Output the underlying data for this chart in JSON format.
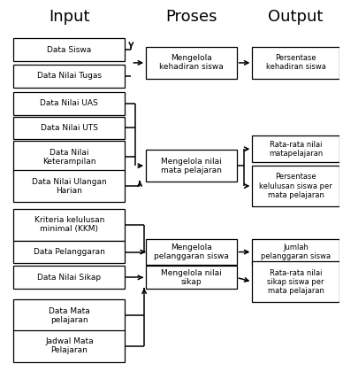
{
  "title_input": "Input",
  "title_proses": "Proses",
  "title_output": "Output",
  "bg_color": "#ffffff",
  "box_color": "#ffffff",
  "box_edge": "#000000",
  "input_labels": [
    "Data Siswa",
    "Data Nilai Tugas",
    "Data Nilai UAS",
    "Data Nilai UTS",
    "Data Nilai\nKeterampilan",
    "Data Nilai Ulangan\nHarian",
    "Kriteria kelulusan\nminimal (KKM)",
    "Data Pelanggaran",
    "Data Nilai Sikap",
    "Data Mata\npelajaran",
    "Jadwal Mata\nPelajaran"
  ],
  "proses_labels": [
    "Mengelola\nkehadiran siswa",
    "Mengelola nilai\nmata pelajaran",
    "Mengelola\npelanggaran siswa",
    "Mengelola nilai\nsikap"
  ],
  "output_labels": [
    "Persentase\nkehadiran siswa",
    "Rata-rata nilai\nmatapelajaran",
    "Persentase\nkelulusan siswa per\nmata pelajaran",
    "Jumlah\npelanggaran siswa",
    "Rata-rata nilai\nsikap siswa per\nmata pelajaran"
  ]
}
